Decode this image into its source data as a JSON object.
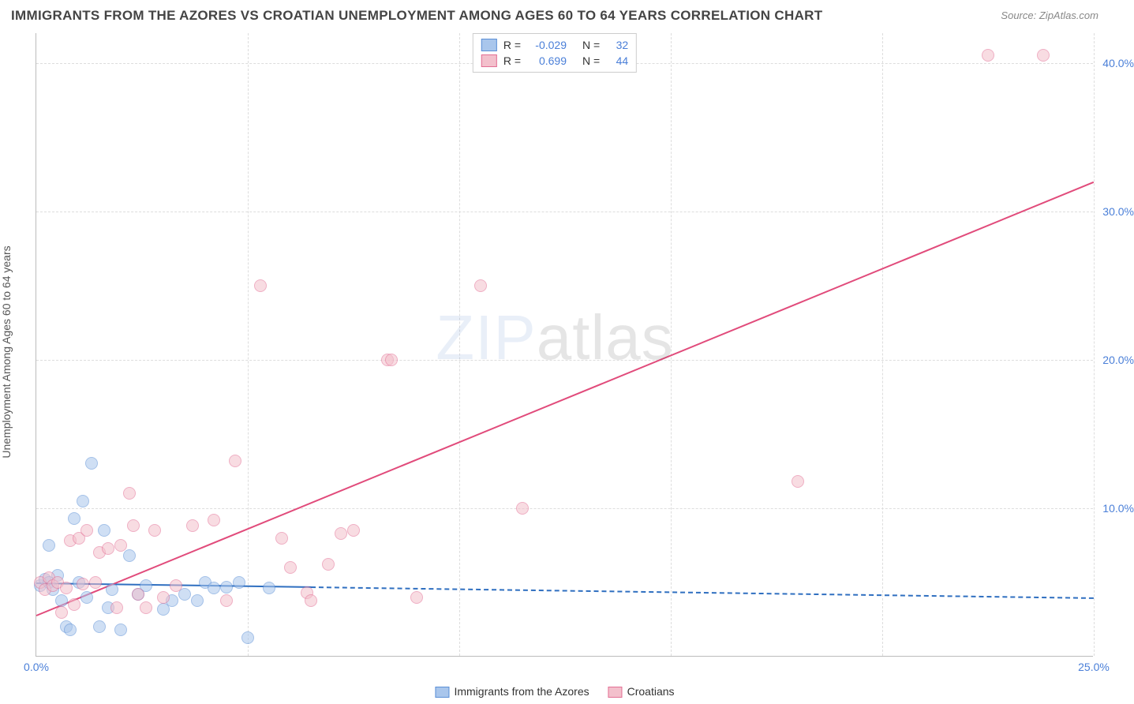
{
  "title": "IMMIGRANTS FROM THE AZORES VS CROATIAN UNEMPLOYMENT AMONG AGES 60 TO 64 YEARS CORRELATION CHART",
  "source_label": "Source:",
  "source_value": "ZipAtlas.com",
  "ylabel": "Unemployment Among Ages 60 to 64 years",
  "watermark_a": "ZIP",
  "watermark_b": "atlas",
  "chart": {
    "type": "scatter",
    "xlim": [
      0,
      25
    ],
    "ylim": [
      0,
      42
    ],
    "xtick_positions": [
      0,
      25
    ],
    "xtick_labels": [
      "0.0%",
      "25.0%"
    ],
    "ytick_positions": [
      10,
      20,
      30,
      40
    ],
    "ytick_labels": [
      "10.0%",
      "20.0%",
      "30.0%",
      "40.0%"
    ],
    "grid_v_positions": [
      5,
      10,
      15,
      20,
      25
    ],
    "grid_color": "#dddddd",
    "background_color": "#ffffff",
    "axis_color": "#bbbbbb",
    "tick_label_color": "#4a7fd8",
    "point_radius": 8,
    "point_opacity": 0.55,
    "series": [
      {
        "name": "Immigrants from the Azores",
        "fill": "#a9c6ec",
        "stroke": "#5b8fd6",
        "r_value": "-0.029",
        "n_value": "32",
        "trend": {
          "x1": 0,
          "y1": 5.0,
          "x2": 25,
          "y2": 4.0,
          "solid_until_x": 6.5,
          "color": "#2f6fc0"
        },
        "points": [
          [
            0.1,
            4.8
          ],
          [
            0.2,
            5.2
          ],
          [
            0.3,
            7.5
          ],
          [
            0.3,
            5.0
          ],
          [
            0.4,
            4.5
          ],
          [
            0.5,
            5.5
          ],
          [
            0.6,
            3.8
          ],
          [
            0.7,
            2.0
          ],
          [
            0.8,
            1.8
          ],
          [
            0.9,
            9.3
          ],
          [
            1.0,
            5.0
          ],
          [
            1.1,
            10.5
          ],
          [
            1.2,
            4.0
          ],
          [
            1.3,
            13.0
          ],
          [
            1.5,
            2.0
          ],
          [
            1.6,
            8.5
          ],
          [
            1.7,
            3.3
          ],
          [
            1.8,
            4.5
          ],
          [
            2.0,
            1.8
          ],
          [
            2.2,
            6.8
          ],
          [
            2.4,
            4.2
          ],
          [
            2.6,
            4.8
          ],
          [
            3.0,
            3.2
          ],
          [
            3.2,
            3.8
          ],
          [
            3.5,
            4.2
          ],
          [
            3.8,
            3.8
          ],
          [
            4.0,
            5.0
          ],
          [
            4.2,
            4.6
          ],
          [
            4.5,
            4.7
          ],
          [
            4.8,
            5.0
          ],
          [
            5.0,
            1.3
          ],
          [
            5.5,
            4.6
          ]
        ]
      },
      {
        "name": "Croatians",
        "fill": "#f3c0cc",
        "stroke": "#e36f94",
        "r_value": "0.699",
        "n_value": "44",
        "trend": {
          "x1": 0,
          "y1": 2.8,
          "x2": 25,
          "y2": 32.0,
          "solid_until_x": 25,
          "color": "#e14b7b"
        },
        "points": [
          [
            0.1,
            5.0
          ],
          [
            0.2,
            4.5
          ],
          [
            0.3,
            5.3
          ],
          [
            0.4,
            4.8
          ],
          [
            0.5,
            5.0
          ],
          [
            0.6,
            3.0
          ],
          [
            0.7,
            4.6
          ],
          [
            0.8,
            7.8
          ],
          [
            0.9,
            3.5
          ],
          [
            1.0,
            8.0
          ],
          [
            1.1,
            4.9
          ],
          [
            1.2,
            8.5
          ],
          [
            1.4,
            5.0
          ],
          [
            1.5,
            7.0
          ],
          [
            1.7,
            7.3
          ],
          [
            1.9,
            3.3
          ],
          [
            2.0,
            7.5
          ],
          [
            2.2,
            11.0
          ],
          [
            2.3,
            8.8
          ],
          [
            2.4,
            4.2
          ],
          [
            2.6,
            3.3
          ],
          [
            2.8,
            8.5
          ],
          [
            3.0,
            4.0
          ],
          [
            3.3,
            4.8
          ],
          [
            3.7,
            8.8
          ],
          [
            4.2,
            9.2
          ],
          [
            4.5,
            3.8
          ],
          [
            4.7,
            13.2
          ],
          [
            5.3,
            25.0
          ],
          [
            5.8,
            8.0
          ],
          [
            6.0,
            6.0
          ],
          [
            6.4,
            4.3
          ],
          [
            6.5,
            3.8
          ],
          [
            6.9,
            6.2
          ],
          [
            7.2,
            8.3
          ],
          [
            7.5,
            8.5
          ],
          [
            8.3,
            20.0
          ],
          [
            8.4,
            20.0
          ],
          [
            9.0,
            4.0
          ],
          [
            10.5,
            25.0
          ],
          [
            11.5,
            10.0
          ],
          [
            18.0,
            11.8
          ],
          [
            22.5,
            40.5
          ],
          [
            23.8,
            40.5
          ]
        ]
      }
    ]
  },
  "legend_top": {
    "r_label": "R  =",
    "n_label": "N  ="
  },
  "legend_bottom": [
    {
      "label": "Immigrants from the Azores",
      "fill": "#a9c6ec",
      "stroke": "#5b8fd6"
    },
    {
      "label": "Croatians",
      "fill": "#f3c0cc",
      "stroke": "#e36f94"
    }
  ]
}
